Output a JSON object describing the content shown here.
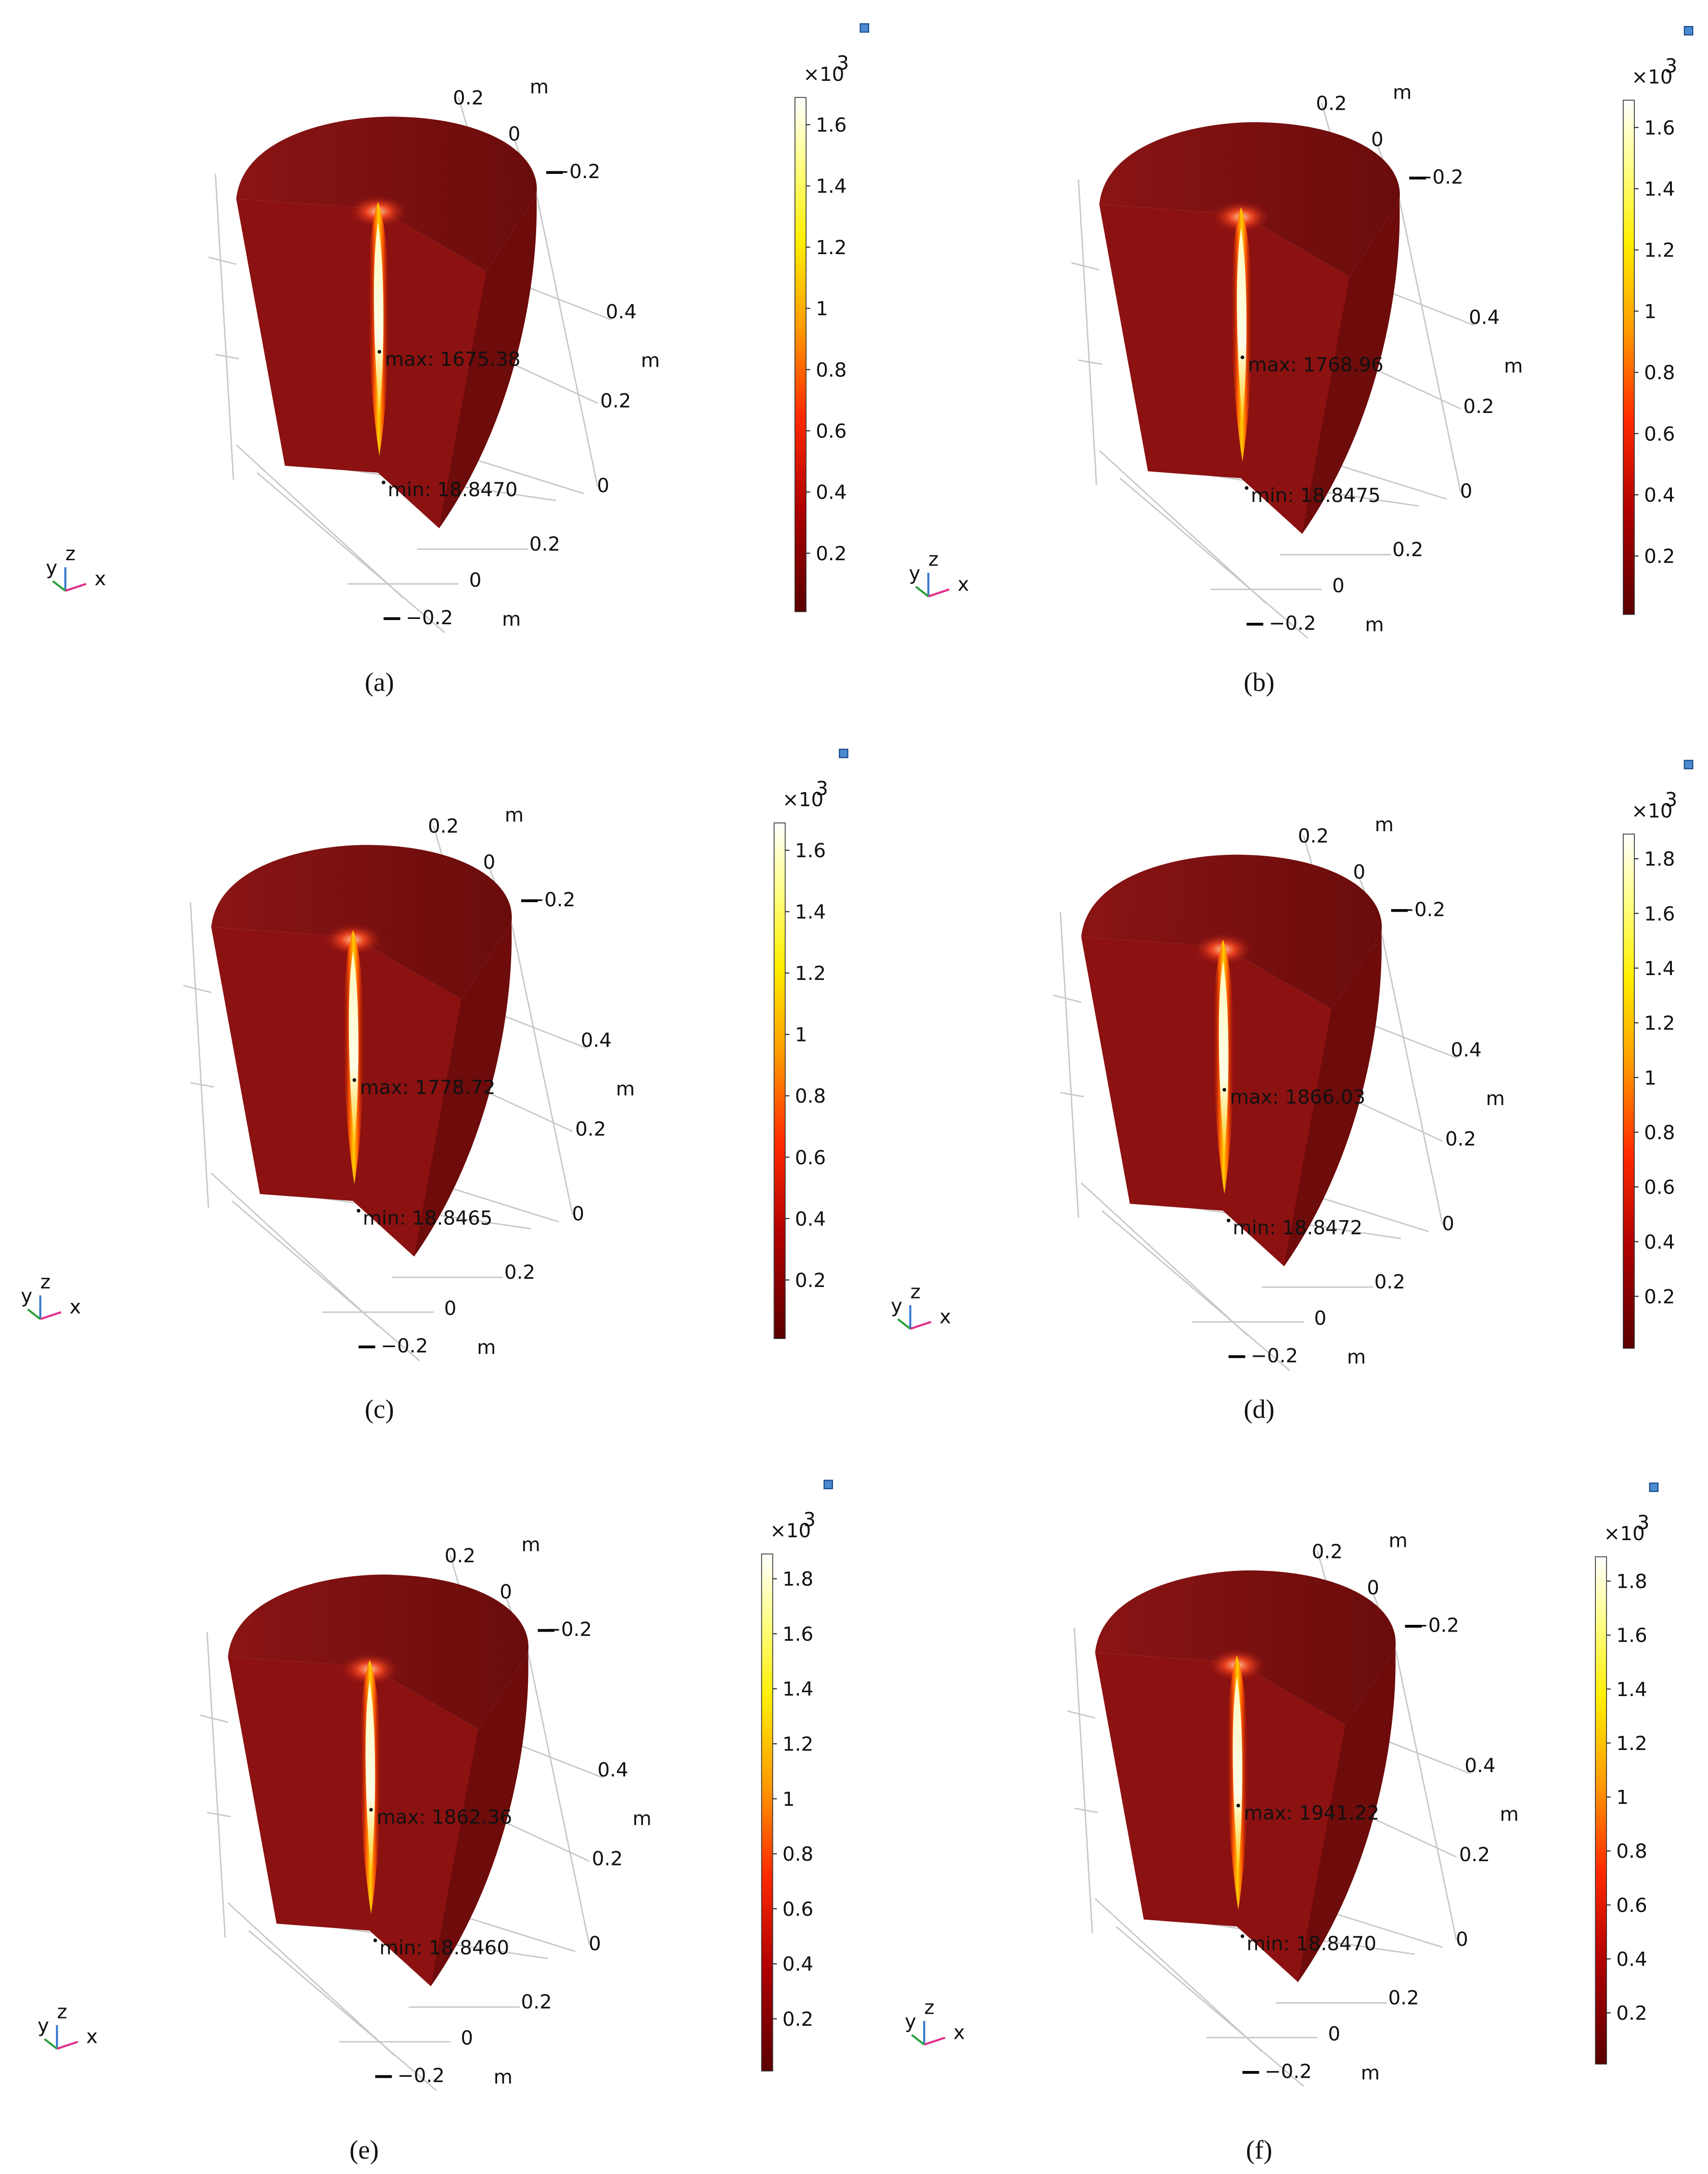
{
  "panels": [
    {
      "label": "(a)",
      "max_label": "max: 1675.38",
      "min_label": "min: 18.8470",
      "colorbar": {
        "multiplier": "×10",
        "exponent": "3",
        "ticks": [
          "0.2",
          "0.4",
          "0.6",
          "0.8",
          "1",
          "1.2",
          "1.4",
          "1.6"
        ]
      },
      "axis_labels": [
        "0.2",
        "m",
        "0",
        "−0.2",
        "0.4",
        "m",
        "0.2",
        "0",
        "0.2",
        "0",
        "−0.2",
        "m"
      ],
      "triad": [
        "y",
        "z",
        "x"
      ]
    },
    {
      "label": "(b)",
      "max_label": "max: 1768.96",
      "min_label": "min: 18.8475",
      "colorbar": {
        "multiplier": "×10",
        "exponent": "3",
        "ticks": [
          "0.2",
          "0.4",
          "0.6",
          "0.8",
          "1",
          "1.2",
          "1.4",
          "1.6"
        ]
      },
      "axis_labels": [
        "0.2",
        "m",
        "0",
        "−0.2",
        "0.4",
        "m",
        "0.2",
        "0",
        "0.2",
        "0",
        "−0.2",
        "m"
      ],
      "triad": [
        "y",
        "z",
        "x"
      ]
    },
    {
      "label": "(c)",
      "max_label": "max: 1778.72",
      "min_label": "min: 18.8465",
      "colorbar": {
        "multiplier": "×10",
        "exponent": "3",
        "ticks": [
          "0.2",
          "0.4",
          "0.6",
          "0.8",
          "1",
          "1.2",
          "1.4",
          "1.6"
        ]
      },
      "axis_labels": [
        "0.2",
        "m",
        "0",
        "−0.2",
        "0.4",
        "m",
        "0.2",
        "0",
        "0.2",
        "0",
        "−0.2",
        "m"
      ],
      "triad": [
        "y",
        "z",
        "x"
      ]
    },
    {
      "label": "(d)",
      "max_label": "max: 1866.03",
      "min_label": "min: 18.8472",
      "colorbar": {
        "multiplier": "×10",
        "exponent": "3",
        "ticks": [
          "0.2",
          "0.4",
          "0.6",
          "0.8",
          "1",
          "1.2",
          "1.4",
          "1.6",
          "1.8"
        ]
      },
      "axis_labels": [
        "0.2",
        "m",
        "0",
        "−0.2",
        "0.4",
        "m",
        "0.2",
        "0",
        "0.2",
        "0",
        "−0.2",
        "m"
      ],
      "triad": [
        "y",
        "z",
        "x"
      ]
    },
    {
      "label": "(e)",
      "max_label": "max: 1862.36",
      "min_label": "min: 18.8460",
      "colorbar": {
        "multiplier": "×10",
        "exponent": "3",
        "ticks": [
          "0.2",
          "0.4",
          "0.6",
          "0.8",
          "1",
          "1.2",
          "1.4",
          "1.6",
          "1.8"
        ]
      },
      "axis_labels": [
        "0.2",
        "m",
        "0",
        "−0.2",
        "0.4",
        "m",
        "0.2",
        "0",
        "0.2",
        "0",
        "−0.2",
        "m"
      ],
      "triad": [
        "y",
        "z",
        "x"
      ]
    },
    {
      "label": "(f)",
      "max_label": "max: 1941.22",
      "min_label": "min: 18.8470",
      "colorbar": {
        "multiplier": "×10",
        "exponent": "3",
        "ticks": [
          "0.2",
          "0.4",
          "0.6",
          "0.8",
          "1",
          "1.2",
          "1.4",
          "1.6",
          "1.8"
        ]
      },
      "axis_labels": [
        "0.2",
        "m",
        "0",
        "−0.2",
        "0.4",
        "m",
        "0.2",
        "0",
        "0.2",
        "0",
        "−0.2",
        "m"
      ],
      "triad": [
        "y",
        "z",
        "x"
      ]
    }
  ]
}
